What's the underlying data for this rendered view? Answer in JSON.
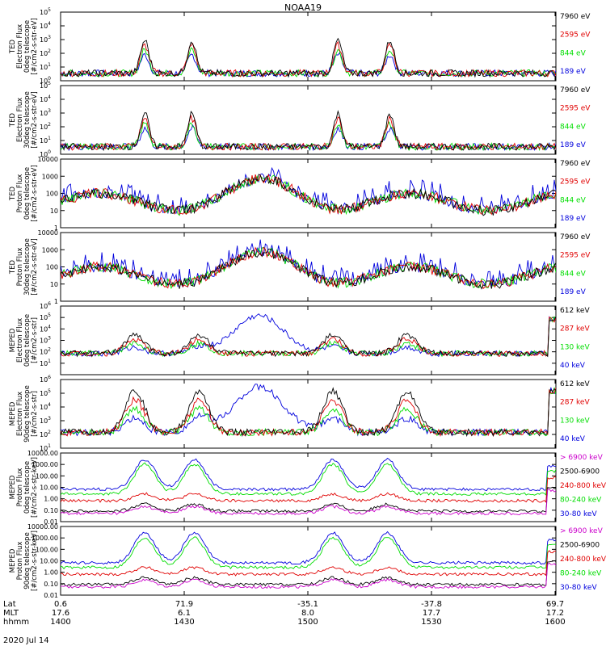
{
  "title": "NOAA19",
  "date": "2020 Jul 14",
  "colors": {
    "black": "#000000",
    "red": "#e00000",
    "green": "#00dd00",
    "blue": "#0000dd",
    "magenta": "#cc00cc"
  },
  "footer": {
    "row_labels": [
      "Lat",
      "MLT",
      "hhmm"
    ],
    "columns": [
      {
        "lat": "0.6",
        "mlt": "17.6",
        "hhmm": "1400"
      },
      {
        "lat": "71.9",
        "mlt": "6.1",
        "hhmm": "1430"
      },
      {
        "lat": "-35.1",
        "mlt": "8.0",
        "hhmm": "1500"
      },
      {
        "lat": "-37.8",
        "mlt": "17.7",
        "hhmm": "1530"
      },
      {
        "lat": "69.7",
        "mlt": "17.2",
        "hhmm": "1600"
      }
    ]
  },
  "chart_data": [
    {
      "type": "line",
      "ylabel": [
        "TED",
        "Electron Flux",
        "0deg telescope",
        "[#/cm2-s-str-eV]"
      ],
      "yscale": "log",
      "ylim": [
        1,
        100000
      ],
      "tick_labels": [
        "10^0",
        "10^1",
        "10^2",
        "10^3",
        "10^4",
        "10^5"
      ],
      "tick_exps": [
        0,
        1,
        2,
        3,
        4,
        5
      ],
      "x": [
        "1400",
        "1430",
        "1500",
        "1530",
        "1600"
      ],
      "series": [
        {
          "name": "7960 eV",
          "color": "#000000"
        },
        {
          "name": "2595 eV",
          "color": "#e00000"
        },
        {
          "name": "844 eV",
          "color": "#00dd00"
        },
        {
          "name": "189 eV",
          "color": "#0000dd"
        }
      ]
    },
    {
      "type": "line",
      "ylabel": [
        "TED",
        "Electron Flux",
        "30deg telescope",
        "[#/cm2-s-str-eV]"
      ],
      "yscale": "log",
      "ylim": [
        1,
        100000
      ],
      "tick_labels": [
        "10^0",
        "10^1",
        "10^2",
        "10^3",
        "10^4",
        "10^5"
      ],
      "tick_exps": [
        0,
        1,
        2,
        3,
        4,
        5
      ],
      "x": [
        "1400",
        "1430",
        "1500",
        "1530",
        "1600"
      ],
      "series": [
        {
          "name": "7960 eV",
          "color": "#000000"
        },
        {
          "name": "2595 eV",
          "color": "#e00000"
        },
        {
          "name": "844 eV",
          "color": "#00dd00"
        },
        {
          "name": "189 eV",
          "color": "#0000dd"
        }
      ]
    },
    {
      "type": "line",
      "ylabel": [
        "TED",
        "Proton Flux",
        "0deg telescope",
        "[#/cm2-s-str-eV]"
      ],
      "yscale": "log",
      "ylim": [
        1,
        10000
      ],
      "tick_labels": [
        "1",
        "10",
        "100",
        "1000",
        "10000"
      ],
      "tick_exps": [
        0,
        1,
        2,
        3,
        4
      ],
      "x": [
        "1400",
        "1430",
        "1500",
        "1530",
        "1600"
      ],
      "series": [
        {
          "name": "7960 eV",
          "color": "#000000"
        },
        {
          "name": "2595 eV",
          "color": "#e00000"
        },
        {
          "name": "844 eV",
          "color": "#00dd00"
        },
        {
          "name": "189 eV",
          "color": "#0000dd"
        }
      ]
    },
    {
      "type": "line",
      "ylabel": [
        "TED",
        "Proton Flux",
        "30deg telescope",
        "[#/cm2-s-str-eV]"
      ],
      "yscale": "log",
      "ylim": [
        1,
        10000
      ],
      "tick_labels": [
        "1",
        "10",
        "100",
        "1000",
        "10000"
      ],
      "tick_exps": [
        0,
        1,
        2,
        3,
        4
      ],
      "x": [
        "1400",
        "1430",
        "1500",
        "1530",
        "1600"
      ],
      "series": [
        {
          "name": "7960 eV",
          "color": "#000000"
        },
        {
          "name": "2595 eV",
          "color": "#e00000"
        },
        {
          "name": "844 eV",
          "color": "#00dd00"
        },
        {
          "name": "189 eV",
          "color": "#0000dd"
        }
      ]
    },
    {
      "type": "line",
      "ylabel": [
        "MEPED",
        "Electron Flux",
        "0deg telescope",
        "[#/cm2-s-str]"
      ],
      "yscale": "log",
      "ylim": [
        1,
        1000000
      ],
      "tick_labels": [
        "10^1",
        "10^2",
        "10^3",
        "10^4",
        "10^5",
        "10^6"
      ],
      "tick_exps": [
        1,
        2,
        3,
        4,
        5,
        6
      ],
      "x": [
        "1400",
        "1430",
        "1500",
        "1530",
        "1600"
      ],
      "series": [
        {
          "name": "612 keV",
          "color": "#000000"
        },
        {
          "name": "287 keV",
          "color": "#e00000"
        },
        {
          "name": "130 keV",
          "color": "#00dd00"
        },
        {
          "name": "40 keV",
          "color": "#0000dd"
        }
      ]
    },
    {
      "type": "line",
      "ylabel": [
        "MEPED",
        "Electron Flux",
        "90deg telescope",
        "[#/cm2-s-str]"
      ],
      "yscale": "log",
      "ylim": [
        10,
        1000000
      ],
      "tick_labels": [
        "10^1",
        "10^2",
        "10^3",
        "10^4",
        "10^5",
        "10^6"
      ],
      "tick_exps": [
        1,
        2,
        3,
        4,
        5,
        6
      ],
      "x": [
        "1400",
        "1430",
        "1500",
        "1530",
        "1600"
      ],
      "series": [
        {
          "name": "612 keV",
          "color": "#000000"
        },
        {
          "name": "287 keV",
          "color": "#e00000"
        },
        {
          "name": "130 keV",
          "color": "#00dd00"
        },
        {
          "name": "40 keV",
          "color": "#0000dd"
        }
      ]
    },
    {
      "type": "line",
      "ylabel": [
        "MEPED",
        "Proton Flux",
        "0deg telescope",
        "[#/cm2-s-str-keV]"
      ],
      "yscale": "log",
      "ylim": [
        0.01,
        10000
      ],
      "tick_labels": [
        "0.01",
        "0.10",
        "1.00",
        "10.00",
        "100.00",
        "1000.00",
        "10000.00"
      ],
      "tick_exps": [
        -2,
        -1,
        0,
        1,
        2,
        3,
        4
      ],
      "x": [
        "1400",
        "1430",
        "1500",
        "1530",
        "1600"
      ],
      "series": [
        {
          "name": "> 6900 keV",
          "color": "#cc00cc"
        },
        {
          "name": "2500-6900",
          "color": "#000000"
        },
        {
          "name": "240-800 keV",
          "color": "#e00000"
        },
        {
          "name": "80-240 keV",
          "color": "#00dd00"
        },
        {
          "name": "30-80 keV",
          "color": "#0000dd"
        }
      ]
    },
    {
      "type": "line",
      "ylabel": [
        "MEPED",
        "Proton Flux",
        "90deg telescope",
        "[#/cm2-s-str-keV]"
      ],
      "yscale": "log",
      "ylim": [
        0.01,
        10000
      ],
      "tick_labels": [
        "0.01",
        "0.10",
        "1.00",
        "10.00",
        "100.00",
        "1000.00",
        "10000.00"
      ],
      "tick_exps": [
        -2,
        -1,
        0,
        1,
        2,
        3,
        4
      ],
      "x": [
        "1400",
        "1430",
        "1500",
        "1530",
        "1600"
      ],
      "series": [
        {
          "name": "> 6900 keV",
          "color": "#cc00cc"
        },
        {
          "name": "2500-6900",
          "color": "#000000"
        },
        {
          "name": "240-800 keV",
          "color": "#e00000"
        },
        {
          "name": "80-240 keV",
          "color": "#00dd00"
        },
        {
          "name": "30-80 keV",
          "color": "#0000dd"
        }
      ]
    }
  ]
}
